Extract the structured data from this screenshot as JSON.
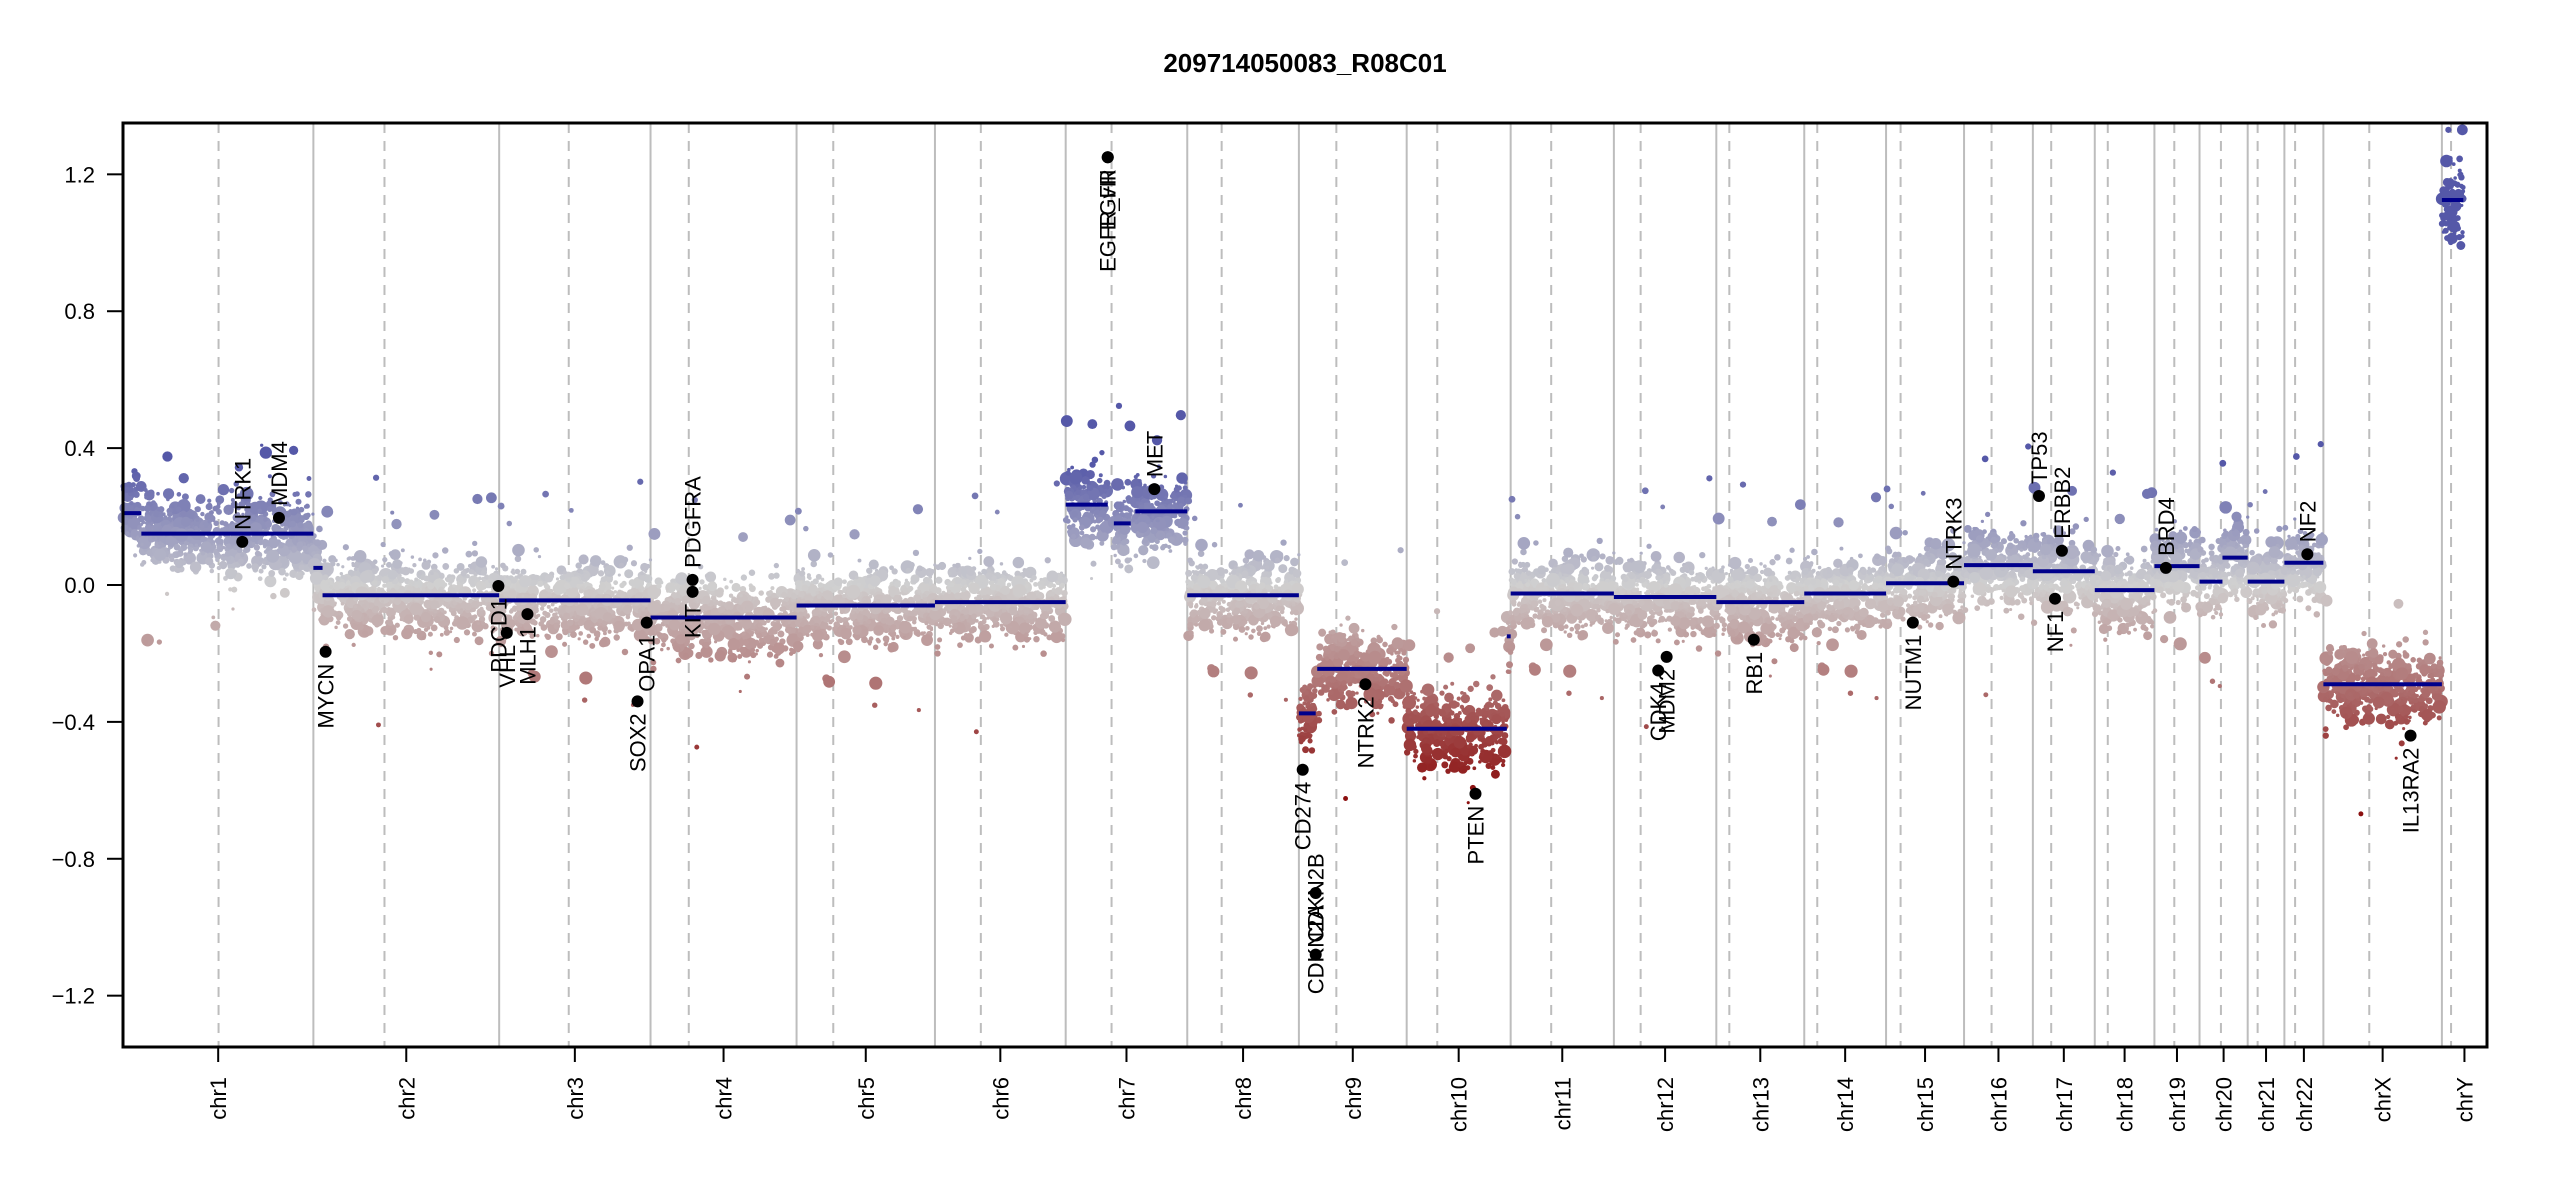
{
  "chart_data": {
    "type": "scatter",
    "title": "209714050083_R08C01",
    "xlabel": "",
    "ylabel": "",
    "ylim": [
      -1.35,
      1.35
    ],
    "yticks": [
      -1.2,
      -0.8,
      -0.4,
      0.0,
      0.4,
      0.8,
      1.2
    ],
    "ytick_labels": [
      "−1.2",
      "−0.8",
      "−0.4",
      "0.0",
      "0.4",
      "0.8",
      "1.2"
    ],
    "x_units": "cumulative genomic position (Mb)",
    "grid": "chromosome boundaries (solid grey) and centromeres (dashed grey)",
    "colors": {
      "gain": "#5558a8",
      "neutral": "#d0d0d0",
      "loss": "#8b0f0f",
      "segment": "#00008b",
      "gene_point": "#000000",
      "boundary": "#bdbdbd",
      "centromere": "#bdbdbd"
    },
    "chromosomes": [
      {
        "name": "chr1",
        "length": 249,
        "centromere": 125
      },
      {
        "name": "chr2",
        "length": 243,
        "centromere": 93
      },
      {
        "name": "chr3",
        "length": 198,
        "centromere": 91
      },
      {
        "name": "chr4",
        "length": 191,
        "centromere": 50
      },
      {
        "name": "chr5",
        "length": 181,
        "centromere": 48
      },
      {
        "name": "chr6",
        "length": 171,
        "centromere": 60
      },
      {
        "name": "chr7",
        "length": 159,
        "centromere": 60
      },
      {
        "name": "chr8",
        "length": 146,
        "centromere": 45
      },
      {
        "name": "chr9",
        "length": 141,
        "centromere": 49
      },
      {
        "name": "chr10",
        "length": 136,
        "centromere": 40
      },
      {
        "name": "chr11",
        "length": 135,
        "centromere": 53
      },
      {
        "name": "chr12",
        "length": 134,
        "centromere": 35
      },
      {
        "name": "chr13",
        "length": 115,
        "centromere": 17
      },
      {
        "name": "chr14",
        "length": 107,
        "centromere": 17
      },
      {
        "name": "chr15",
        "length": 102,
        "centromere": 19
      },
      {
        "name": "chr16",
        "length": 90,
        "centromere": 36
      },
      {
        "name": "chr17",
        "length": 81,
        "centromere": 24
      },
      {
        "name": "chr18",
        "length": 78,
        "centromere": 17
      },
      {
        "name": "chr19",
        "length": 59,
        "centromere": 26
      },
      {
        "name": "chr20",
        "length": 63,
        "centromere": 28
      },
      {
        "name": "chr21",
        "length": 48,
        "centromere": 13
      },
      {
        "name": "chr22",
        "length": 51,
        "centromere": 14
      },
      {
        "name": "chrX",
        "length": 155,
        "centromere": 60
      },
      {
        "name": "chrY",
        "length": 59,
        "centromere": 12
      }
    ],
    "segments": [
      {
        "chr": "chr1",
        "start": 0,
        "end": 24,
        "value": 0.21
      },
      {
        "chr": "chr1",
        "start": 24,
        "end": 249,
        "value": 0.15
      },
      {
        "chr": "chr2",
        "start": 0,
        "end": 12,
        "value": 0.05
      },
      {
        "chr": "chr2",
        "start": 12,
        "end": 243,
        "value": -0.03
      },
      {
        "chr": "chr3",
        "start": 0,
        "end": 198,
        "value": -0.045
      },
      {
        "chr": "chr4",
        "start": 0,
        "end": 191,
        "value": -0.095
      },
      {
        "chr": "chr5",
        "start": 0,
        "end": 181,
        "value": -0.06
      },
      {
        "chr": "chr6",
        "start": 0,
        "end": 171,
        "value": -0.05
      },
      {
        "chr": "chr7",
        "start": 0,
        "end": 55,
        "value": 0.235
      },
      {
        "chr": "chr7",
        "start": 63,
        "end": 85,
        "value": 0.18
      },
      {
        "chr": "chr7",
        "start": 91,
        "end": 159,
        "value": 0.215
      },
      {
        "chr": "chr8",
        "start": 0,
        "end": 146,
        "value": -0.03
      },
      {
        "chr": "chr9",
        "start": 0,
        "end": 22,
        "value": -0.375
      },
      {
        "chr": "chr9",
        "start": 24,
        "end": 141,
        "value": -0.245
      },
      {
        "chr": "chr10",
        "start": 0,
        "end": 131,
        "value": -0.42
      },
      {
        "chr": "chr10",
        "start": 131,
        "end": 136,
        "value": -0.15
      },
      {
        "chr": "chr11",
        "start": 0,
        "end": 135,
        "value": -0.025
      },
      {
        "chr": "chr12",
        "start": 0,
        "end": 134,
        "value": -0.035
      },
      {
        "chr": "chr13",
        "start": 0,
        "end": 115,
        "value": -0.05
      },
      {
        "chr": "chr14",
        "start": 0,
        "end": 107,
        "value": -0.025
      },
      {
        "chr": "chr15",
        "start": 0,
        "end": 102,
        "value": 0.005
      },
      {
        "chr": "chr16",
        "start": 0,
        "end": 90,
        "value": 0.058
      },
      {
        "chr": "chr17",
        "start": 0,
        "end": 81,
        "value": 0.04
      },
      {
        "chr": "chr18",
        "start": 0,
        "end": 78,
        "value": -0.015
      },
      {
        "chr": "chr19",
        "start": 0,
        "end": 59,
        "value": 0.055
      },
      {
        "chr": "chr20",
        "start": 0,
        "end": 30,
        "value": 0.01
      },
      {
        "chr": "chr20",
        "start": 30,
        "end": 63,
        "value": 0.08
      },
      {
        "chr": "chr21",
        "start": 0,
        "end": 48,
        "value": 0.01
      },
      {
        "chr": "chr22",
        "start": 0,
        "end": 51,
        "value": 0.065
      },
      {
        "chr": "chrX",
        "start": 0,
        "end": 155,
        "value": -0.29
      },
      {
        "chr": "chrY",
        "start": 0,
        "end": 28,
        "value": 1.125
      }
    ],
    "genes": [
      {
        "name": "NTRK1",
        "chr": "chr1",
        "pos": 156,
        "value": 0.126,
        "label_side": "above"
      },
      {
        "name": "MDM4",
        "chr": "chr1",
        "pos": 204,
        "value": 0.196,
        "label_side": "above"
      },
      {
        "name": "MYCN",
        "chr": "chr2",
        "pos": 16,
        "value": -0.195,
        "label_side": "below"
      },
      {
        "name": "PDCD1",
        "chr": "chr2",
        "pos": 242,
        "value": -0.003,
        "label_side": "below"
      },
      {
        "name": "VHL",
        "chr": "chr3",
        "pos": 10,
        "value": -0.14,
        "label_side": "below"
      },
      {
        "name": "MLH1",
        "chr": "chr3",
        "pos": 37,
        "value": -0.085,
        "label_side": "below"
      },
      {
        "name": "SOX2",
        "chr": "chr3",
        "pos": 181,
        "value": -0.34,
        "label_side": "below"
      },
      {
        "name": "OPA1",
        "chr": "chr3",
        "pos": 193,
        "value": -0.11,
        "label_side": "below"
      },
      {
        "name": "KIT",
        "chr": "chr4",
        "pos": 55,
        "value": -0.02,
        "label_side": "below"
      },
      {
        "name": "PDGFRA",
        "chr": "chr4",
        "pos": 55,
        "value": 0.015,
        "label_side": "above"
      },
      {
        "name": "EGFR",
        "chr": "chr7",
        "pos": 55,
        "value": 1.25,
        "label_side": "below"
      },
      {
        "name": "EGFR_vIII",
        "chr": "chr7",
        "pos": 55,
        "value": 1.25,
        "label_side": "below"
      },
      {
        "name": "MET",
        "chr": "chr7",
        "pos": 116,
        "value": 0.28,
        "label_side": "above"
      },
      {
        "name": "CD274",
        "chr": "chr9",
        "pos": 5,
        "value": -0.54,
        "label_side": "below"
      },
      {
        "name": "CDKN2A",
        "chr": "chr9",
        "pos": 22,
        "value": -0.9,
        "label_side": "below"
      },
      {
        "name": "CDKN2B",
        "chr": "chr9",
        "pos": 22,
        "value": -1.08,
        "label_side": "above"
      },
      {
        "name": "NTRK2",
        "chr": "chr9",
        "pos": 87,
        "value": -0.29,
        "label_side": "below"
      },
      {
        "name": "PTEN",
        "chr": "chr10",
        "pos": 90,
        "value": -0.61,
        "label_side": "below"
      },
      {
        "name": "CDK4",
        "chr": "chr12",
        "pos": 58,
        "value": -0.25,
        "label_side": "below"
      },
      {
        "name": "MDM2",
        "chr": "chr12",
        "pos": 69,
        "value": -0.21,
        "label_side": "below"
      },
      {
        "name": "RB1",
        "chr": "chr13",
        "pos": 49,
        "value": -0.16,
        "label_side": "below"
      },
      {
        "name": "NUTM1",
        "chr": "chr15",
        "pos": 35,
        "value": -0.11,
        "label_side": "below"
      },
      {
        "name": "NTRK3",
        "chr": "chr15",
        "pos": 88,
        "value": 0.01,
        "label_side": "above"
      },
      {
        "name": "TP53",
        "chr": "chr17",
        "pos": 8,
        "value": 0.26,
        "label_side": "above"
      },
      {
        "name": "NF1",
        "chr": "chr17",
        "pos": 29,
        "value": -0.04,
        "label_side": "below"
      },
      {
        "name": "ERBB2",
        "chr": "chr17",
        "pos": 38,
        "value": 0.1,
        "label_side": "above"
      },
      {
        "name": "BRD4",
        "chr": "chr19",
        "pos": 15,
        "value": 0.05,
        "label_side": "above"
      },
      {
        "name": "NF2",
        "chr": "chr22",
        "pos": 30,
        "value": 0.09,
        "label_side": "above"
      },
      {
        "name": "IL13RA2",
        "chr": "chrX",
        "pos": 114,
        "value": -0.44,
        "label_side": "below"
      }
    ]
  }
}
